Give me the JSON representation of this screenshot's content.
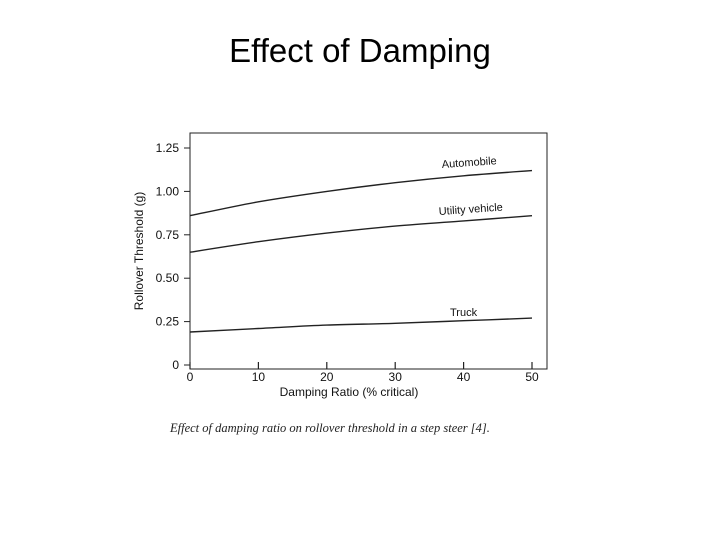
{
  "slide": {
    "title": "Effect of Damping",
    "caption": "Effect of damping ratio on rollover threshold in a step steer [4]."
  },
  "colors": {
    "line": "#222222",
    "text": "#111111",
    "background": "#ffffff"
  },
  "chart_data": {
    "type": "line",
    "title": "",
    "xlabel": "Damping Ratio (% critical)",
    "ylabel": "Rollover Threshold (g)",
    "xlim": [
      0,
      50
    ],
    "ylim": [
      0,
      1.35
    ],
    "x_ticks": [
      0,
      10,
      20,
      30,
      40,
      50
    ],
    "x_tick_labels": [
      "0",
      "10",
      "20",
      "30",
      "40",
      "50"
    ],
    "y_ticks": [
      0,
      0.25,
      0.5,
      0.75,
      1.0,
      1.25
    ],
    "y_tick_labels": [
      "0",
      "0.25",
      "0.50",
      "0.75",
      "1.00",
      "1.25"
    ],
    "grid": false,
    "legend": "none",
    "series": [
      {
        "name": "Automobile",
        "x": [
          0,
          10,
          20,
          30,
          40,
          50
        ],
        "y": [
          0.86,
          0.94,
          1.0,
          1.05,
          1.09,
          1.12
        ]
      },
      {
        "name": "Utility vehicle",
        "x": [
          0,
          10,
          20,
          30,
          40,
          50
        ],
        "y": [
          0.65,
          0.71,
          0.76,
          0.8,
          0.83,
          0.86
        ]
      },
      {
        "name": "Truck",
        "x": [
          0,
          10,
          20,
          30,
          40,
          50
        ],
        "y": [
          0.19,
          0.21,
          0.23,
          0.24,
          0.255,
          0.27
        ]
      }
    ]
  }
}
